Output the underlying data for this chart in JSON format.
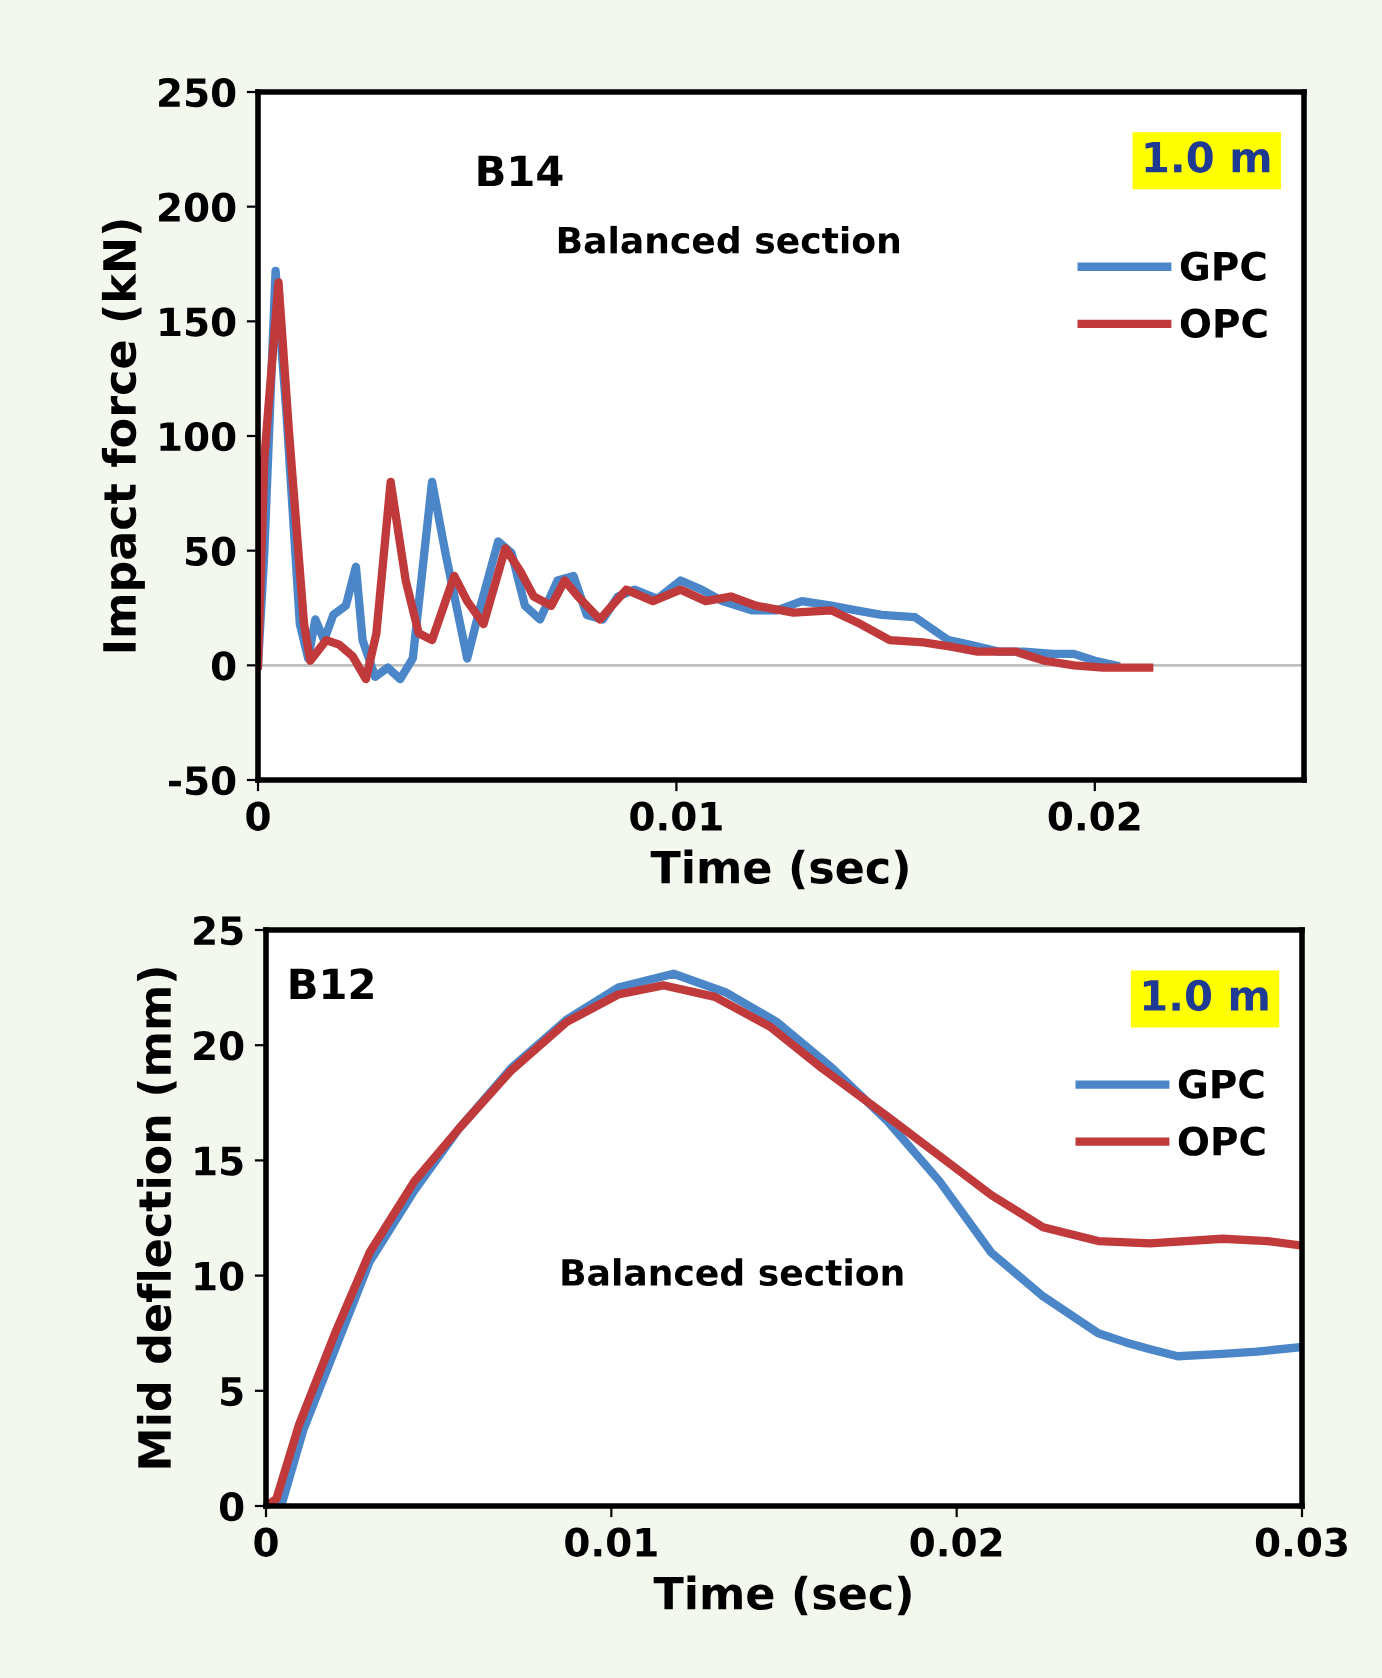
{
  "chart_data": [
    {
      "type": "line",
      "xlabel": "Time (sec)",
      "ylabel": "Impact force (kN)",
      "annotations": [
        "B14",
        "Balanced section",
        "1.0 m"
      ],
      "xlim": [
        0,
        0.025
      ],
      "xticks": [
        0,
        0.01,
        0.02
      ],
      "ylim": [
        -50,
        250
      ],
      "yticks": [
        -50,
        0,
        50,
        100,
        150,
        200,
        250
      ],
      "grid": false,
      "legend": "top right",
      "marker": "none",
      "line_style": "solid",
      "ref_lines": [
        {
          "axis": "y",
          "value": 0,
          "color": "#bfbfbf"
        }
      ],
      "series": [
        {
          "name": "GPC",
          "color": "#4a86c8",
          "x": [
            0,
            0.00015,
            0.00042,
            0.00068,
            0.001,
            0.0012,
            0.00137,
            0.00158,
            0.0018,
            0.0021,
            0.00234,
            0.0025,
            0.0028,
            0.0031,
            0.0034,
            0.0037,
            0.00416,
            0.00448,
            0.005,
            0.00532,
            0.00574,
            0.00606,
            0.00638,
            0.00674,
            0.00716,
            0.00754,
            0.00786,
            0.00824,
            0.0086,
            0.009,
            0.00955,
            0.0101,
            0.0106,
            0.0111,
            0.0118,
            0.0124,
            0.013,
            0.0137,
            0.0143,
            0.0149,
            0.0157,
            0.0161,
            0.0165,
            0.017,
            0.0177,
            0.0183,
            0.019,
            0.0195,
            0.02,
            0.0205
          ],
          "values": [
            0,
            49,
            172,
            110,
            18,
            3,
            20,
            11,
            22,
            26,
            43,
            11,
            -5,
            -1,
            -6,
            3,
            80,
            49,
            3,
            26,
            54,
            49,
            26,
            20,
            37,
            39,
            22,
            20,
            30,
            33,
            29,
            37,
            33,
            28,
            24,
            24,
            28,
            26,
            24,
            22,
            21,
            16,
            11,
            9,
            6,
            6,
            5,
            5,
            2,
            0
          ]
        },
        {
          "name": "OPC",
          "color": "#c0393b",
          "x": [
            0,
            0.00015,
            0.00049,
            0.00074,
            0.0011,
            0.00125,
            0.00163,
            0.00194,
            0.00226,
            0.00258,
            0.00283,
            0.00317,
            0.00353,
            0.00384,
            0.00416,
            0.00469,
            0.005,
            0.00539,
            0.00591,
            0.00627,
            0.00659,
            0.00701,
            0.00733,
            0.00765,
            0.00817,
            0.0088,
            0.00944,
            0.0101,
            0.0107,
            0.0113,
            0.0119,
            0.0128,
            0.0137,
            0.0144,
            0.0151,
            0.0159,
            0.0166,
            0.0172,
            0.0181,
            0.0188,
            0.0195,
            0.0202,
            0.0213
          ],
          "values": [
            0,
            90,
            167,
            102,
            18,
            2,
            11,
            9,
            4,
            -6,
            14,
            80,
            37,
            14,
            11,
            39,
            28,
            18,
            51,
            41,
            30,
            26,
            37,
            30,
            20,
            33,
            28,
            33,
            28,
            30,
            26,
            23,
            24,
            18,
            11,
            10,
            8,
            6,
            6,
            2,
            0,
            -1,
            -1
          ]
        }
      ]
    },
    {
      "type": "line",
      "xlabel": "Time (sec)",
      "ylabel": "Mid deflection (mm)",
      "annotations": [
        "B12",
        "Balanced section",
        "1.0 m"
      ],
      "xlim": [
        0,
        0.03
      ],
      "xticks": [
        0,
        0.01,
        0.02,
        0.03
      ],
      "ylim": [
        0,
        25
      ],
      "yticks": [
        0,
        5,
        10,
        15,
        20,
        25
      ],
      "grid": false,
      "legend": "top right",
      "marker": "none",
      "line_style": "solid",
      "series": [
        {
          "name": "GPC",
          "color": "#4a86c8",
          "x": [
            0,
            0.00044,
            0.00108,
            0.002,
            0.003,
            0.0043,
            0.0056,
            0.0071,
            0.0087,
            0.0102,
            0.0118,
            0.0133,
            0.0148,
            0.0164,
            0.018,
            0.0195,
            0.021,
            0.0225,
            0.0241,
            0.0249,
            0.0256,
            0.0264,
            0.0277,
            0.0287,
            0.03
          ],
          "values": [
            0,
            0,
            3.3,
            6.8,
            10.6,
            13.7,
            16.4,
            19,
            21.1,
            22.5,
            23.1,
            22.3,
            21,
            19,
            16.7,
            14.1,
            11,
            9.1,
            7.5,
            7.1,
            6.8,
            6.5,
            6.6,
            6.7,
            6.9
          ]
        },
        {
          "name": "OPC",
          "color": "#c0393b",
          "x": [
            0,
            0.0003,
            0.00095,
            0.002,
            0.003,
            0.0043,
            0.0056,
            0.0071,
            0.0087,
            0.0102,
            0.0115,
            0.013,
            0.0146,
            0.0161,
            0.018,
            0.0195,
            0.021,
            0.0225,
            0.0241,
            0.0256,
            0.0277,
            0.029,
            0.03
          ],
          "values": [
            0,
            0.3,
            3.5,
            7.5,
            11,
            14.1,
            16.4,
            18.9,
            21,
            22.2,
            22.6,
            22.1,
            20.8,
            19,
            16.9,
            15.2,
            13.5,
            12.1,
            11.5,
            11.4,
            11.6,
            11.5,
            11.3
          ]
        }
      ]
    }
  ]
}
